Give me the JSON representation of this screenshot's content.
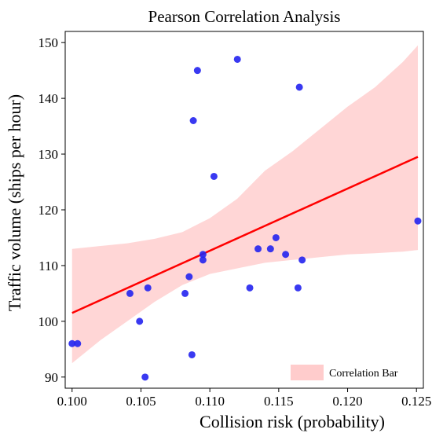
{
  "chart_data": {
    "type": "scatter",
    "title": "Pearson Correlation Analysis",
    "xlabel": "Collision risk (probability)",
    "ylabel": "Traffic volume (ships per hour)",
    "xlim": [
      0.0995,
      0.1255
    ],
    "ylim": [
      88,
      152
    ],
    "xticks": [
      0.1,
      0.105,
      0.11,
      0.115,
      0.12,
      0.125
    ],
    "xtick_labels": [
      "0.100",
      "0.105",
      "0.110",
      "0.115",
      "0.120",
      "0.125"
    ],
    "yticks": [
      90,
      100,
      110,
      120,
      130,
      140,
      150
    ],
    "ytick_labels": [
      "90",
      "100",
      "110",
      "120",
      "130",
      "140",
      "150"
    ],
    "grid": false,
    "legend_position": "bottom-right",
    "legend": [
      {
        "label": "Correlation Bar",
        "color": "#ffcccc"
      }
    ],
    "points": {
      "color": "#2323f0",
      "x": [
        0.1,
        0.1004,
        0.1042,
        0.1049,
        0.1053,
        0.1055,
        0.1082,
        0.1085,
        0.1087,
        0.1088,
        0.1091,
        0.1095,
        0.1095,
        0.1103,
        0.112,
        0.1129,
        0.1135,
        0.1144,
        0.1148,
        0.1155,
        0.1164,
        0.1165,
        0.1167,
        0.1251
      ],
      "y": [
        96,
        96,
        105,
        100,
        90,
        106,
        105,
        108,
        94,
        136,
        145,
        111,
        112,
        126,
        147,
        106,
        113,
        113,
        115,
        112,
        106,
        142,
        111,
        118
      ]
    },
    "regression_line": {
      "color": "#ff0000",
      "x": [
        0.1,
        0.1251
      ],
      "y": [
        101.5,
        129.5
      ]
    },
    "confidence_band": {
      "color": "#ffd6d6",
      "x": [
        0.1,
        0.102,
        0.104,
        0.106,
        0.108,
        0.11,
        0.112,
        0.114,
        0.116,
        0.118,
        0.12,
        0.122,
        0.124,
        0.1251
      ],
      "lower": [
        92.5,
        96.5,
        100.0,
        103.5,
        106.5,
        108.5,
        109.5,
        110.5,
        111.0,
        111.5,
        112.0,
        112.2,
        112.5,
        112.8
      ],
      "upper": [
        113.0,
        113.5,
        114.0,
        114.8,
        116.0,
        118.5,
        122.0,
        127.0,
        130.5,
        134.5,
        138.5,
        142.0,
        146.5,
        149.5
      ]
    }
  }
}
